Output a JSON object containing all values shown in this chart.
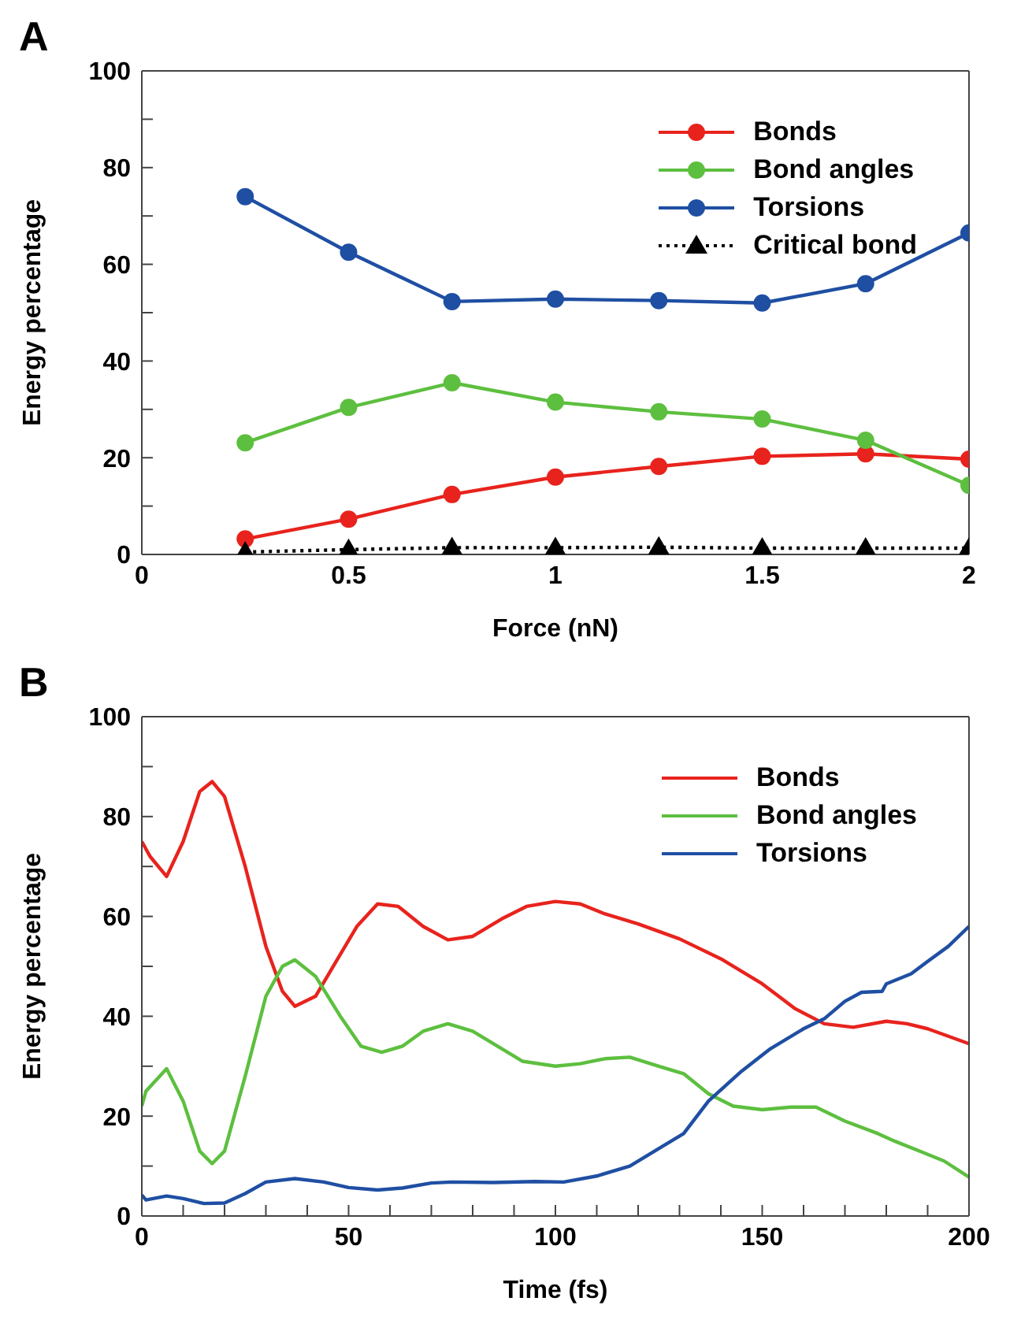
{
  "chart_data": [
    {
      "type": "line",
      "title": "A",
      "xlabel": "Force (nN)",
      "ylabel": "Energy percentage",
      "x": [
        0.25,
        0.5,
        0.75,
        1,
        1.25,
        1.5,
        1.75,
        2
      ],
      "xlim": [
        0,
        2
      ],
      "xticks": [
        0,
        {
          "value": 0.25,
          "label": null
        },
        0.5,
        {
          "value": 0.75,
          "label": null
        },
        1,
        {
          "value": 1.25,
          "label": null
        },
        1.5,
        {
          "value": 1.75,
          "label": null
        },
        2
      ],
      "ylim": [
        0,
        100
      ],
      "yticks": [
        0,
        {
          "value": 10,
          "label": null
        },
        20,
        {
          "value": 30,
          "label": null
        },
        40,
        {
          "value": 50,
          "label": null
        },
        60,
        {
          "value": 70,
          "label": null
        },
        80,
        {
          "value": 90,
          "label": null
        },
        100
      ],
      "grid": false,
      "legend": "top right",
      "marker": "circle",
      "line_style": "solid",
      "series": [
        {
          "name": "Bonds",
          "color": "#e8231d",
          "values": [
            3.2,
            7.3,
            12.4,
            16,
            18.2,
            20.3,
            20.8,
            19.7
          ]
        },
        {
          "name": "Bond angles",
          "color": "#5dbf3f",
          "values": [
            23.1,
            30.4,
            35.5,
            31.5,
            29.5,
            28,
            23.6,
            14.3
          ]
        },
        {
          "name": "Torsions",
          "color": "#1f4fa3",
          "values": [
            74,
            62.5,
            52.3,
            52.8,
            52.5,
            52,
            56,
            66.5
          ]
        },
        {
          "name": "Critical bond",
          "color": "#000000",
          "marker": "triangle",
          "line_style": "dotted",
          "values": [
            0.5,
            1,
            1.4,
            1.4,
            1.5,
            1.3,
            1.3,
            1.3
          ]
        }
      ]
    },
    {
      "type": "line",
      "title": "B",
      "xlabel": "Time (fs)",
      "ylabel": "Energy percentage",
      "xlim": [
        0,
        200
      ],
      "xticks": [
        0,
        {
          "value": 10,
          "label": null
        },
        {
          "value": 20,
          "label": null
        },
        {
          "value": 30,
          "label": null
        },
        {
          "value": 40,
          "label": null
        },
        50,
        {
          "value": 60,
          "label": null
        },
        {
          "value": 70,
          "label": null
        },
        {
          "value": 80,
          "label": null
        },
        {
          "value": 90,
          "label": null
        },
        100,
        {
          "value": 110,
          "label": null
        },
        {
          "value": 120,
          "label": null
        },
        {
          "value": 130,
          "label": null
        },
        {
          "value": 140,
          "label": null
        },
        150,
        {
          "value": 160,
          "label": null
        },
        {
          "value": 170,
          "label": null
        },
        {
          "value": 180,
          "label": null
        },
        {
          "value": 190,
          "label": null
        },
        200
      ],
      "ylim": [
        0,
        100
      ],
      "yticks": [
        0,
        {
          "value": 10,
          "label": null
        },
        20,
        {
          "value": 30,
          "label": null
        },
        40,
        {
          "value": 50,
          "label": null
        },
        60,
        {
          "value": 70,
          "label": null
        },
        80,
        {
          "value": 90,
          "label": null
        },
        100
      ],
      "grid": false,
      "legend": "top right",
      "marker": "none",
      "line_style": "solid",
      "series": [
        {
          "name": "Bonds",
          "color": "#e8231d",
          "x": [
            0,
            2,
            6,
            10,
            14,
            17,
            20,
            25,
            30,
            34,
            37,
            42,
            47,
            52,
            57,
            62,
            68,
            74,
            80,
            87,
            93,
            100,
            106,
            112,
            120,
            130,
            140,
            150,
            158,
            165,
            172,
            180,
            185,
            190,
            195,
            200
          ],
          "values": [
            75,
            72,
            68,
            75,
            85,
            87,
            84,
            70,
            54,
            45,
            42,
            44,
            51,
            58,
            62.5,
            62,
            58,
            55.3,
            56,
            59.5,
            62,
            63,
            62.5,
            60.5,
            58.5,
            55.5,
            51.5,
            46.5,
            41.5,
            38.5,
            37.8,
            39,
            38.5,
            37.5,
            36,
            34.5
          ]
        },
        {
          "name": "Bond angles",
          "color": "#5dbf3f",
          "x": [
            0,
            1,
            6,
            10,
            14,
            17,
            20,
            25,
            30,
            34,
            37,
            42,
            48,
            53,
            58,
            63,
            68,
            74,
            80,
            86,
            92,
            100,
            106,
            112,
            118,
            125,
            131,
            137,
            143,
            150,
            157,
            163,
            170,
            178,
            182,
            188,
            194,
            200
          ],
          "values": [
            22,
            25,
            29.5,
            23,
            13,
            10.5,
            13,
            28,
            44,
            50,
            51.3,
            48,
            40,
            34,
            32.8,
            34,
            37,
            38.5,
            37,
            34,
            31,
            30,
            30.5,
            31.5,
            31.8,
            30,
            28.5,
            24.5,
            22,
            21.3,
            21.8,
            21.8,
            19,
            16.5,
            15,
            13,
            11,
            7.8
          ]
        },
        {
          "name": "Torsions",
          "color": "#1f4fa3",
          "x": [
            0,
            1,
            6,
            10,
            15,
            20,
            25,
            30,
            37,
            44,
            50,
            57,
            63,
            70,
            75,
            85,
            95,
            102,
            110,
            118,
            125,
            131,
            137,
            145,
            152,
            160,
            165,
            170,
            174,
            179,
            180,
            186,
            190,
            195,
            200
          ],
          "values": [
            4.2,
            3.2,
            4,
            3.5,
            2.5,
            2.6,
            4.5,
            6.8,
            7.5,
            6.8,
            5.7,
            5.2,
            5.6,
            6.6,
            6.8,
            6.7,
            6.9,
            6.8,
            8,
            10,
            13.5,
            16.5,
            23,
            29,
            33.5,
            37.5,
            39.5,
            43,
            44.8,
            45,
            46.5,
            48.5,
            51,
            54,
            58
          ]
        }
      ]
    }
  ]
}
